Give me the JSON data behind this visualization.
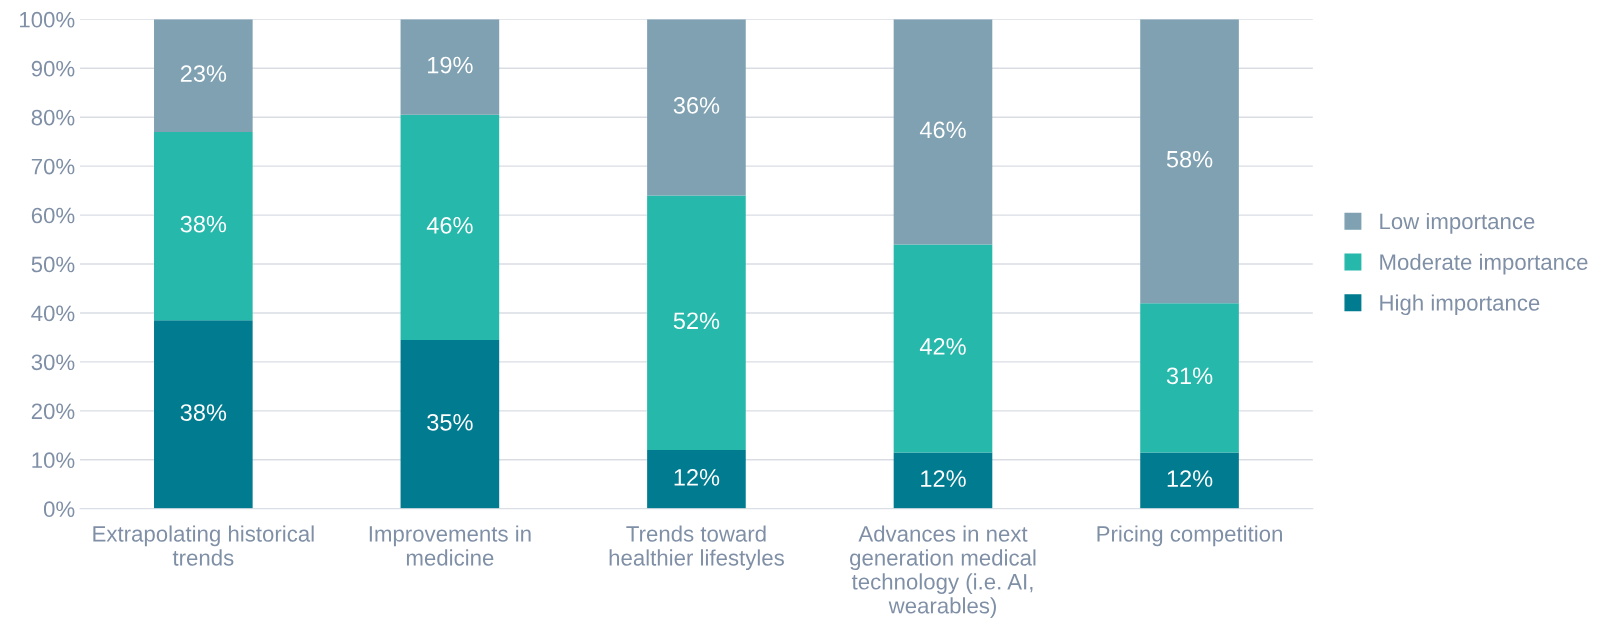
{
  "chart_data": {
    "type": "bar",
    "stacked": true,
    "categories": [
      "Extrapolating historical\ntrends",
      "Improvements in\nmedicine",
      "Trends toward\nhealthier lifestyles",
      "Advances in next\ngeneration medical\ntechnology (i.e. AI,\nwearables)",
      "Pricing competition"
    ],
    "series": [
      {
        "name": "High importance",
        "color": "#007b8f",
        "values": [
          38.5,
          34.5,
          12,
          11.5,
          11.5
        ],
        "value_labels": [
          "38%",
          "35%",
          "12%",
          "12%",
          "12%"
        ]
      },
      {
        "name": "Moderate importance",
        "color": "#26b8ab",
        "values": [
          38.5,
          46,
          52,
          42.5,
          30.5
        ],
        "value_labels": [
          "38%",
          "46%",
          "52%",
          "42%",
          "31%"
        ]
      },
      {
        "name": "Low importance",
        "color": "#7fa1b2",
        "values": [
          23,
          19.5,
          36,
          46,
          58
        ],
        "value_labels": [
          "23%",
          "19%",
          "36%",
          "46%",
          "58%"
        ]
      }
    ],
    "ylim": [
      0,
      100
    ],
    "yticks": [
      {
        "value": 0,
        "label": "0%"
      },
      {
        "value": 10,
        "label": "10%"
      },
      {
        "value": 20,
        "label": "20%"
      },
      {
        "value": 30,
        "label": "30%"
      },
      {
        "value": 40,
        "label": "40%"
      },
      {
        "value": 50,
        "label": "50%"
      },
      {
        "value": 60,
        "label": "60%"
      },
      {
        "value": 70,
        "label": "70%"
      },
      {
        "value": 80,
        "label": "80%"
      },
      {
        "value": 90,
        "label": "90%"
      },
      {
        "value": 100,
        "label": "100%"
      }
    ],
    "grid": "y",
    "legend": "right"
  }
}
